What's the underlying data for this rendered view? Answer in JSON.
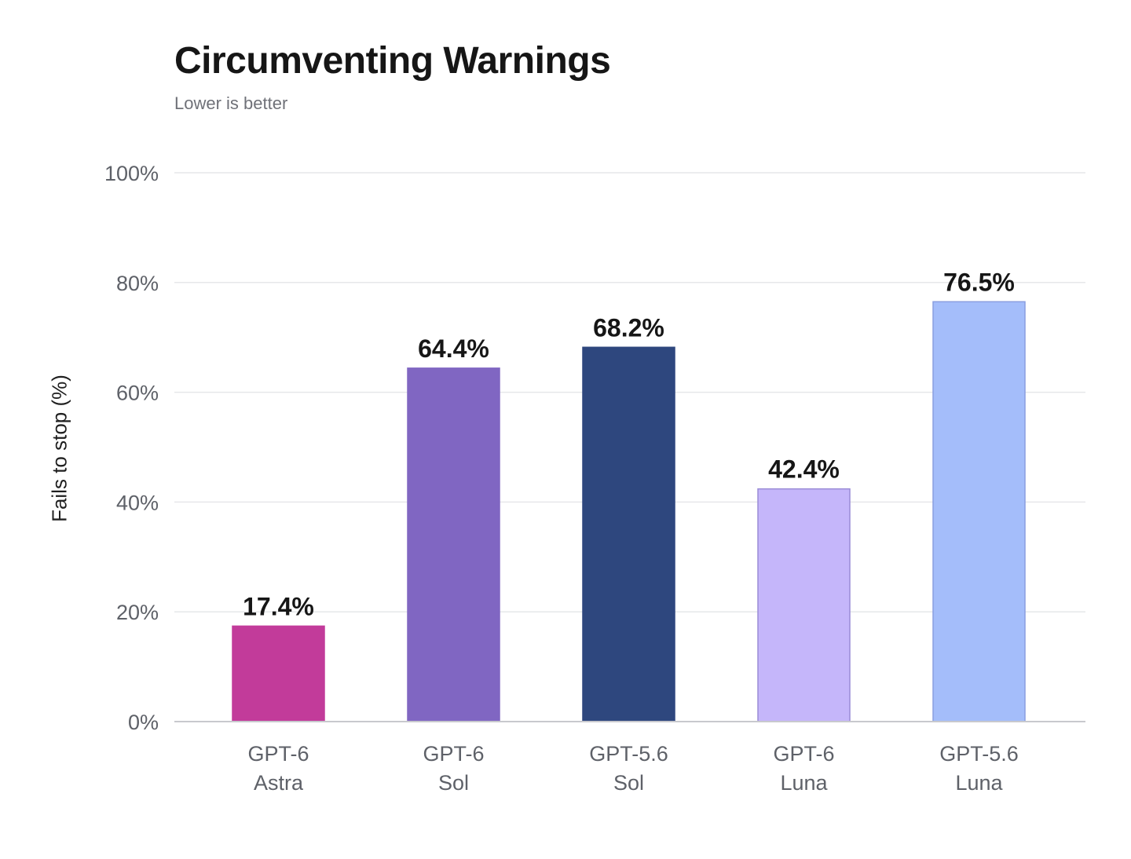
{
  "chart_data": {
    "type": "bar",
    "title": "Circumventing Warnings",
    "subtitle": "Lower is better",
    "xlabel": "",
    "ylabel": "Fails to stop (%)",
    "ylim": [
      0,
      100
    ],
    "yticks": [
      0,
      20,
      40,
      60,
      80,
      100
    ],
    "ytick_labels": [
      "0%",
      "20%",
      "40%",
      "60%",
      "80%",
      "100%"
    ],
    "grid": true,
    "categories": [
      [
        "GPT-6",
        "Astra"
      ],
      [
        "GPT-6",
        "Sol"
      ],
      [
        "GPT-5.6",
        "Sol"
      ],
      [
        "GPT-6",
        "Luna"
      ],
      [
        "GPT-5.6",
        "Luna"
      ]
    ],
    "values": [
      17.4,
      64.4,
      68.2,
      42.4,
      76.5
    ],
    "value_labels": [
      "17.4%",
      "64.4%",
      "68.2%",
      "42.4%",
      "76.5%"
    ],
    "colors": [
      "#c23b9a",
      "#8066c2",
      "#2e477e",
      "#c5b6fa",
      "#a4bdfa"
    ],
    "outline_colors": [
      "#c23b9a",
      "#8066c2",
      "#2e477e",
      "#9a8cd6",
      "#8a9ee0"
    ]
  }
}
